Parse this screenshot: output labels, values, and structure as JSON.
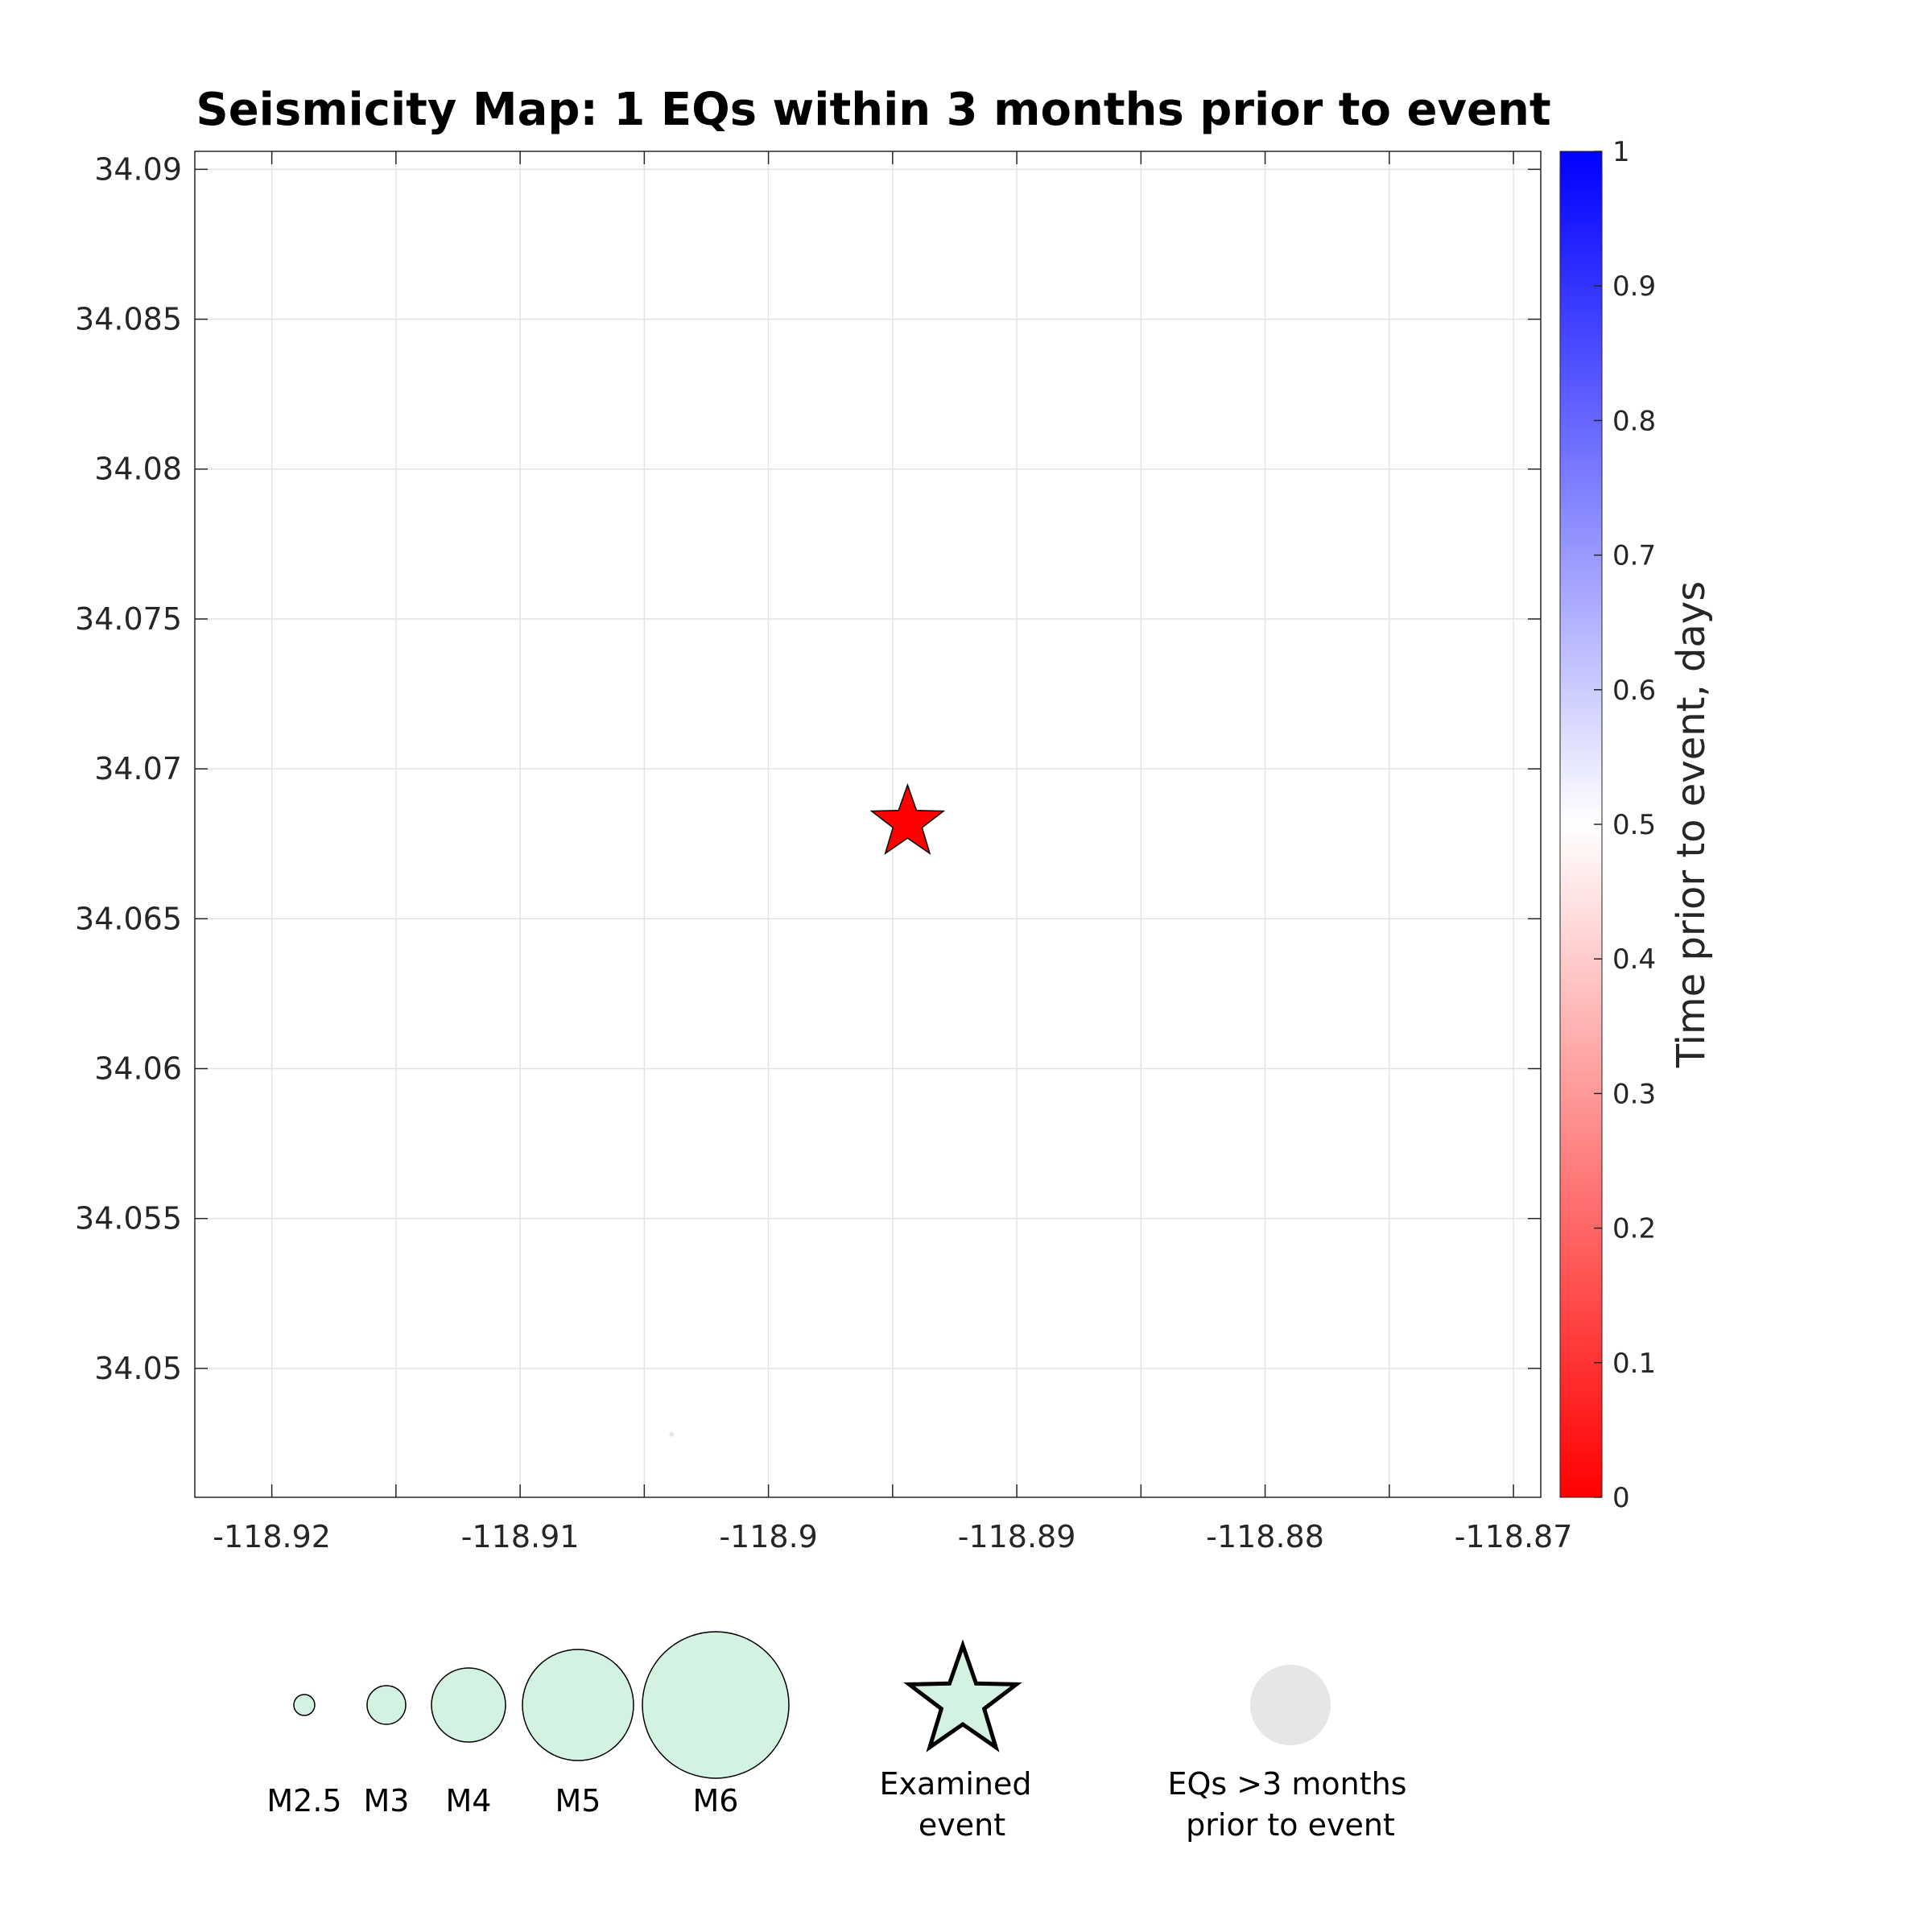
{
  "chart_data": {
    "type": "scatter",
    "title": "Seismicity Map: 1 EQs within 3 months prior to event",
    "xlabel": "",
    "ylabel": "",
    "xlim": [
      -118.9231,
      -118.8689
    ],
    "ylim": [
      34.0457,
      34.0906
    ],
    "x_ticks": [
      -118.92,
      -118.915,
      -118.91,
      -118.905,
      -118.9,
      -118.895,
      -118.89,
      -118.885,
      -118.88,
      -118.875,
      -118.87
    ],
    "x_tick_labels": [
      "-118.92",
      "",
      "-118.91",
      "",
      "-118.9",
      "",
      "-118.89",
      "",
      "-118.88",
      "",
      "-118.87"
    ],
    "y_ticks": [
      34.05,
      34.055,
      34.06,
      34.065,
      34.07,
      34.075,
      34.08,
      34.085,
      34.09
    ],
    "y_tick_labels": [
      "34.05",
      "34.055",
      "34.06",
      "34.065",
      "34.07",
      "34.075",
      "34.08",
      "34.085",
      "34.09"
    ],
    "grid": true,
    "examined_event": {
      "lon": -118.8944,
      "lat": 34.0682,
      "color": "#ff0000"
    },
    "earthquakes": [
      {
        "lon": -118.9039,
        "lat": 34.0478,
        "color": "#e6e6e6"
      }
    ],
    "colorbar": {
      "label": "Time prior to event, days",
      "range": [
        0,
        1
      ],
      "ticks": [
        0,
        0.1,
        0.2,
        0.3,
        0.4,
        0.5,
        0.6,
        0.7,
        0.8,
        0.9,
        1
      ],
      "tick_labels": [
        "0",
        "0.1",
        "0.2",
        "0.3",
        "0.4",
        "0.5",
        "0.6",
        "0.7",
        "0.8",
        "0.9",
        "1"
      ],
      "colors": [
        "#ff0000",
        "#ffffff",
        "#0000ff"
      ]
    },
    "legend": {
      "magnitude_labels": [
        "M2.5",
        "M3",
        "M4",
        "M5",
        "M6"
      ],
      "magnitudes": [
        2.5,
        3,
        4,
        5,
        6
      ],
      "marker_color": "#d4f2e1",
      "examined_label_lines": [
        "Examined",
        "event"
      ],
      "old_eq_label_lines": [
        "EQs >3 months",
        "prior to event"
      ],
      "old_eq_color": "#e6e6e6"
    }
  }
}
